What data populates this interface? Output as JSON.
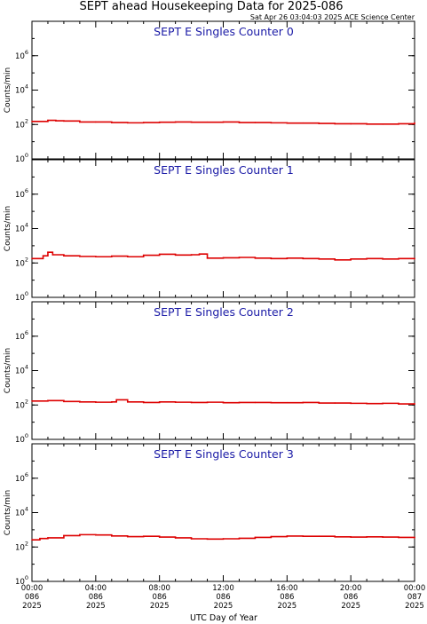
{
  "title": "SEPT ahead Housekeeping Data for 2025-086",
  "subtitle": "Sat Apr 26 03:04:03 2025 ACE Science Center",
  "colors": {
    "trace": "#dd0000",
    "panel_title": "#1a1aa6"
  },
  "chart_data": [
    {
      "type": "line",
      "line_style": "step",
      "title": "SEPT E Singles Counter 0",
      "ylabel": "Counts/min",
      "xlabel": "UTC Day of Year",
      "yscale": "log",
      "ylim": [
        1,
        100000000
      ],
      "ytick_labels": [
        "10^0",
        "10^2",
        "10^4",
        "10^6"
      ],
      "x_hours": [
        0,
        1,
        1.5,
        2,
        3,
        4,
        5,
        6,
        7,
        8,
        9,
        10,
        11,
        12,
        13,
        14,
        15,
        16,
        17,
        18,
        19,
        20,
        21,
        22,
        23,
        24
      ],
      "values": [
        150,
        175,
        165,
        160,
        140,
        140,
        130,
        125,
        130,
        135,
        140,
        135,
        135,
        140,
        130,
        130,
        125,
        120,
        120,
        115,
        110,
        110,
        105,
        105,
        110,
        125
      ]
    },
    {
      "type": "line",
      "line_style": "step",
      "title": "SEPT E Singles Counter 1",
      "ylabel": "Counts/min",
      "xlabel": "UTC Day of Year",
      "yscale": "log",
      "ylim": [
        1,
        100000000
      ],
      "ytick_labels": [
        "10^0",
        "10^2",
        "10^4",
        "10^6"
      ],
      "x_hours": [
        0,
        0.7,
        1,
        1.3,
        2,
        3,
        4,
        5,
        6,
        7,
        8,
        9,
        10,
        10.5,
        11,
        12,
        13,
        14,
        15,
        16,
        17,
        18,
        19,
        20,
        21,
        22,
        23,
        24
      ],
      "values": [
        180,
        260,
        420,
        300,
        260,
        240,
        230,
        250,
        230,
        280,
        320,
        290,
        300,
        330,
        190,
        200,
        210,
        190,
        180,
        190,
        180,
        170,
        150,
        170,
        180,
        170,
        180,
        170
      ]
    },
    {
      "type": "line",
      "line_style": "step",
      "title": "SEPT E Singles Counter 2",
      "ylabel": "Counts/min",
      "xlabel": "UTC Day of Year",
      "yscale": "log",
      "ylim": [
        1,
        100000000
      ],
      "ytick_labels": [
        "10^0",
        "10^2",
        "10^4",
        "10^6"
      ],
      "x_hours": [
        0,
        1,
        2,
        3,
        4,
        5,
        5.3,
        6,
        7,
        8,
        9,
        10,
        11,
        12,
        13,
        14,
        15,
        16,
        17,
        18,
        19,
        20,
        21,
        22,
        23,
        24
      ],
      "values": [
        170,
        180,
        160,
        150,
        145,
        150,
        200,
        150,
        140,
        150,
        145,
        140,
        145,
        135,
        140,
        140,
        135,
        135,
        140,
        130,
        130,
        125,
        120,
        125,
        115,
        120
      ]
    },
    {
      "type": "line",
      "line_style": "step",
      "title": "SEPT E Singles Counter 3",
      "ylabel": "Counts/min",
      "xlabel": "UTC Day of Year",
      "yscale": "log",
      "ylim": [
        1,
        100000000
      ],
      "ytick_labels": [
        "10^0",
        "10^2",
        "10^4",
        "10^6"
      ],
      "x_hours": [
        0,
        0.5,
        1,
        2,
        3,
        4,
        5,
        6,
        7,
        8,
        9,
        10,
        11,
        12,
        13,
        14,
        15,
        16,
        17,
        18,
        19,
        20,
        21,
        22,
        23,
        24
      ],
      "values": [
        260,
        310,
        340,
        460,
        520,
        500,
        440,
        400,
        420,
        380,
        340,
        300,
        290,
        300,
        320,
        360,
        400,
        430,
        420,
        420,
        390,
        380,
        390,
        380,
        360,
        340
      ]
    }
  ],
  "x_axis": {
    "label": "UTC Day of Year",
    "ticks": [
      {
        "time": "00:00",
        "doy": "086",
        "year": "2025"
      },
      {
        "time": "04:00",
        "doy": "086",
        "year": "2025"
      },
      {
        "time": "08:00",
        "doy": "086",
        "year": "2025"
      },
      {
        "time": "12:00",
        "doy": "086",
        "year": "2025"
      },
      {
        "time": "16:00",
        "doy": "086",
        "year": "2025"
      },
      {
        "time": "20:00",
        "doy": "086",
        "year": "2025"
      },
      {
        "time": "00:00",
        "doy": "087",
        "year": "2025"
      }
    ]
  }
}
